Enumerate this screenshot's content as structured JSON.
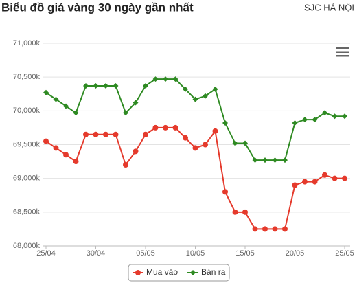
{
  "header": {
    "source": "SJC HÀ NỘI"
  },
  "chart_data": {
    "type": "line",
    "title": "Biểu đồ giá vàng 30 ngày gần nhất",
    "categories": [
      "25/04",
      null,
      null,
      null,
      null,
      "30/04",
      null,
      null,
      null,
      null,
      "05/05",
      null,
      null,
      null,
      null,
      "10/05",
      null,
      null,
      null,
      null,
      "15/05",
      null,
      null,
      null,
      null,
      "20/05",
      null,
      null,
      null,
      null,
      "25/05"
    ],
    "series": [
      {
        "name": "Mua vào",
        "color": "#e53a2c",
        "values": [
          69550,
          69450,
          69350,
          69250,
          69650,
          69650,
          69650,
          69650,
          69200,
          69400,
          69650,
          69750,
          69750,
          69750,
          69600,
          69450,
          69500,
          69700,
          68800,
          68500,
          68500,
          68250,
          68250,
          68250,
          68250,
          68900,
          68950,
          68950,
          69050,
          69000,
          69000
        ]
      },
      {
        "name": "Bán ra",
        "color": "#2e8a22",
        "values": [
          70270,
          70170,
          70070,
          69970,
          70370,
          70370,
          70370,
          70370,
          69970,
          70120,
          70370,
          70470,
          70470,
          70470,
          70320,
          70170,
          70220,
          70320,
          69820,
          69520,
          69520,
          69270,
          69270,
          69270,
          69270,
          69820,
          69870,
          69870,
          69970,
          69920,
          69920
        ]
      }
    ],
    "ylim": [
      68000,
      71000
    ],
    "yticks": [
      {
        "value": 68000,
        "label": "68,000k"
      },
      {
        "value": 68500,
        "label": "68,500k"
      },
      {
        "value": 69000,
        "label": "69,000k"
      },
      {
        "value": 69500,
        "label": "69,500k"
      },
      {
        "value": 70000,
        "label": "70,000k"
      },
      {
        "value": 70500,
        "label": "70,500k"
      },
      {
        "value": 71000,
        "label": "71,000k"
      }
    ],
    "grid": true
  }
}
